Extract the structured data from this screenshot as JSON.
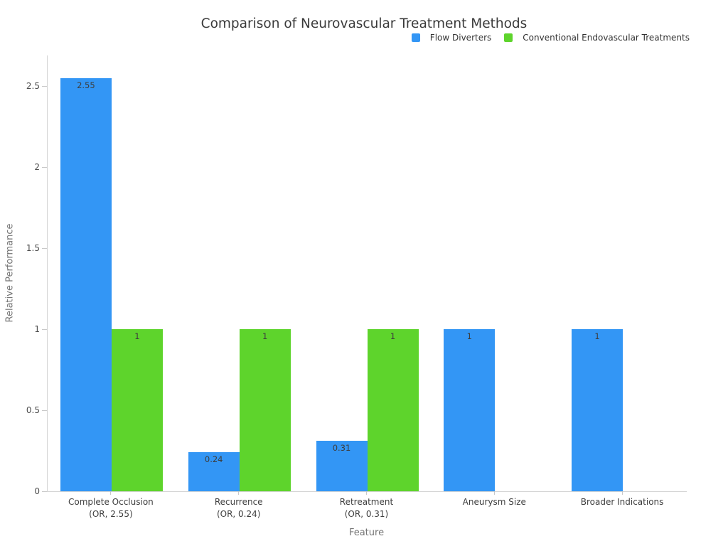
{
  "chart_data": {
    "type": "bar",
    "title": "Comparison of Neurovascular Treatment Methods",
    "xlabel": "Feature",
    "ylabel": "Relative Performance",
    "ylim": [
      0,
      2.69
    ],
    "grid": false,
    "legend_position": "top-right",
    "background_color": "#ffffff",
    "categories": [
      {
        "label": "Complete Occlusion",
        "sublabel": "(OR, 2.55)"
      },
      {
        "label": "Recurrence",
        "sublabel": "(OR, 0.24)"
      },
      {
        "label": "Retreatment",
        "sublabel": "(OR, 0.31)"
      },
      {
        "label": "Aneurysm Size",
        "sublabel": ""
      },
      {
        "label": "Broader Indications",
        "sublabel": ""
      }
    ],
    "yticks": [
      {
        "value": 0,
        "label": "0"
      },
      {
        "value": 0.5,
        "label": "0.5"
      },
      {
        "value": 1,
        "label": "1"
      },
      {
        "value": 1.5,
        "label": "1.5"
      },
      {
        "value": 2,
        "label": "2"
      },
      {
        "value": 2.5,
        "label": "2.5"
      }
    ],
    "series": [
      {
        "name": "Flow Diverters",
        "color": "#3396f5",
        "values": [
          2.55,
          0.24,
          0.31,
          1,
          1
        ],
        "value_labels": [
          "2.55",
          "0.24",
          "0.31",
          "1",
          "1"
        ]
      },
      {
        "name": "Conventional Endovascular Treatments",
        "color": "#5ed42c",
        "values": [
          1,
          1,
          1,
          null,
          null
        ],
        "value_labels": [
          "1",
          "1",
          "1",
          "",
          ""
        ]
      }
    ]
  }
}
